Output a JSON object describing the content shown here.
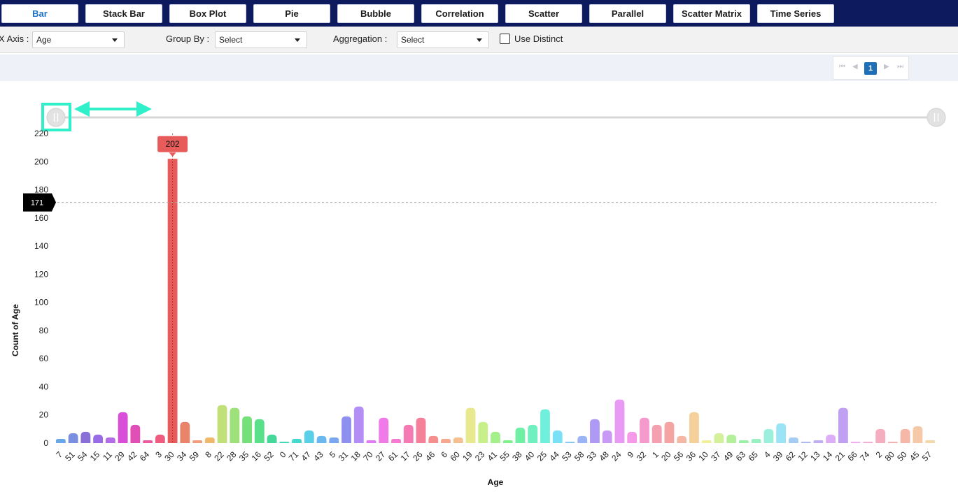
{
  "tabs": [
    {
      "label": "Bar",
      "active": true
    },
    {
      "label": "Stack Bar"
    },
    {
      "label": "Box Plot"
    },
    {
      "label": "Pie"
    },
    {
      "label": "Bubble"
    },
    {
      "label": "Correlation"
    },
    {
      "label": "Scatter"
    },
    {
      "label": "Parallel"
    },
    {
      "label": "Scatter Matrix"
    },
    {
      "label": "Time Series"
    }
  ],
  "controls": {
    "x_axis_label": "X Axis :",
    "x_axis_value": "Age",
    "group_by_label": "Group By :",
    "group_by_value": "Select",
    "aggregation_label": "Aggregation :",
    "aggregation_value": "Select",
    "use_distinct_label": "Use Distinct"
  },
  "pager": {
    "current_page": "1"
  },
  "chart_data": {
    "type": "bar",
    "xlabel": "Age",
    "ylabel": "Count of Age",
    "ylim": [
      0,
      220
    ],
    "yticks": [
      0,
      20,
      40,
      60,
      80,
      100,
      120,
      140,
      160,
      180,
      200,
      220
    ],
    "categories": [
      "7",
      "51",
      "54",
      "15",
      "11",
      "29",
      "42",
      "64",
      "3",
      "30",
      "34",
      "59",
      "8",
      "22",
      "28",
      "35",
      "16",
      "52",
      "0",
      "71",
      "47",
      "43",
      "5",
      "31",
      "18",
      "70",
      "27",
      "61",
      "17",
      "26",
      "46",
      "6",
      "60",
      "19",
      "23",
      "41",
      "55",
      "38",
      "40",
      "25",
      "44",
      "53",
      "58",
      "33",
      "48",
      "24",
      "9",
      "32",
      "1",
      "20",
      "56",
      "36",
      "10",
      "37",
      "49",
      "63",
      "65",
      "4",
      "39",
      "62",
      "12",
      "13",
      "14",
      "21",
      "66",
      "74",
      "2",
      "80",
      "50",
      "45",
      "57"
    ],
    "values": [
      3,
      7,
      8,
      6,
      4,
      22,
      13,
      2,
      6,
      202,
      15,
      2,
      4,
      27,
      25,
      19,
      17,
      6,
      1,
      3,
      9,
      5,
      4,
      19,
      26,
      2,
      18,
      3,
      13,
      18,
      5,
      3,
      4,
      25,
      15,
      8,
      2,
      11,
      13,
      24,
      9,
      1,
      5,
      17,
      9,
      31,
      8,
      18,
      13,
      15,
      5,
      22,
      2,
      7,
      6,
      2,
      3,
      10,
      14,
      4,
      1,
      2,
      6,
      25,
      1,
      1,
      10,
      1,
      10,
      12,
      2
    ],
    "colors": [
      "#6aa7e8",
      "#7b8fe0",
      "#8a6fd8",
      "#9a6be6",
      "#b36be8",
      "#d94ed8",
      "#e04fb5",
      "#ec5aa0",
      "#ee5c80",
      "#e85b5b",
      "#e9836a",
      "#ef9f7d",
      "#f0b86a",
      "#c2e07a",
      "#9ee07a",
      "#73e07a",
      "#5ae08a",
      "#45d89a",
      "#45d8b4",
      "#45d8cc",
      "#5ad0e8",
      "#6ab8f0",
      "#7ba7f0",
      "#8f8ff0",
      "#b38ff5",
      "#e07af5",
      "#f07ae8",
      "#f57ad0",
      "#f57ab4",
      "#f5809a",
      "#f58f8f",
      "#f5a78f",
      "#f5c08f",
      "#e8e88f",
      "#c8f08a",
      "#a4f08a",
      "#80f08a",
      "#70f0a4",
      "#70f0c0",
      "#70f0dc",
      "#7ae0f5",
      "#8ac8f5",
      "#9ab4f5",
      "#ae9af5",
      "#c99af5",
      "#e89af5",
      "#f59ae8",
      "#f59acc",
      "#f5a0b0",
      "#f5a4a4",
      "#f5b8a4",
      "#f5d09a",
      "#f0f09a",
      "#d4f09a",
      "#b4f09a",
      "#9af0a4",
      "#9af0c0",
      "#9af0dc",
      "#9ae4f5",
      "#a4ccf5",
      "#aeb8f5",
      "#c0aef5",
      "#dcaef5",
      "#c0a0f0",
      "#f5aef0",
      "#f5aed8",
      "#f5aec0",
      "#f5b0b0",
      "#f5b8a8",
      "#f5c8a8",
      "#f5d8a8"
    ],
    "highlight_index": 9,
    "tooltip_value": "202",
    "reference_line": {
      "value": 171,
      "label": "171"
    }
  }
}
